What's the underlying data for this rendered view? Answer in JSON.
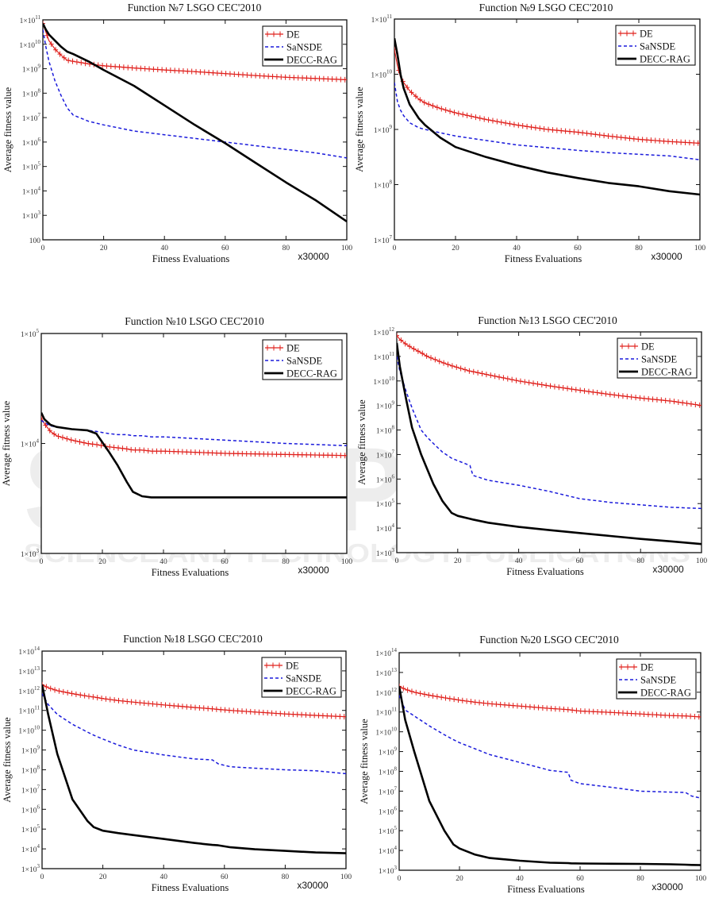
{
  "watermark": {
    "logo_main": "SCITEPRESS",
    "logo_sub": "SCIENCE AND TECHNOLOGY PUBLICATIONS"
  },
  "colors": {
    "DE": "#e0201c",
    "SaNSDE": "#1a1adb",
    "DECC-RAG": "#000000"
  },
  "chart_data": [
    {
      "type": "line",
      "title": "Function №7 LSGO CEC'2010",
      "xlabel": "Fitness Evaluations",
      "x_multiplier": "x30000",
      "ylabel": "Average fitness value",
      "yscale": "log",
      "xlim": [
        0,
        100
      ],
      "ylim_log10": [
        2,
        11
      ],
      "x_ticks": [
        "0",
        "20",
        "40",
        "60",
        "80",
        "100"
      ],
      "y_ticks": [
        {
          "exp": 11,
          "label": "1×10",
          "sup": "11"
        },
        {
          "exp": 10,
          "label": "1×10",
          "sup": "10"
        },
        {
          "exp": 9,
          "label": "1×10",
          "sup": "9"
        },
        {
          "exp": 8,
          "label": "1×10",
          "sup": "8"
        },
        {
          "exp": 7,
          "label": "1×10",
          "sup": "7"
        },
        {
          "exp": 6,
          "label": "1×10",
          "sup": "6"
        },
        {
          "exp": 5,
          "label": "1×10",
          "sup": "5"
        },
        {
          "exp": 4,
          "label": "1×10",
          "sup": "4"
        },
        {
          "exp": 3,
          "label": "1×10",
          "sup": "3"
        },
        {
          "exp": 2,
          "label": "100",
          "sup": ""
        }
      ],
      "legend": [
        "DE",
        "SaNSDE",
        "DECC-RAG"
      ],
      "legend_position": "top-right",
      "x": [
        0,
        1,
        2,
        4,
        6,
        8,
        10,
        15,
        20,
        30,
        40,
        50,
        60,
        70,
        80,
        90,
        100
      ],
      "series": [
        {
          "name": "DE",
          "log10_values": [
            10.85,
            10.5,
            10.15,
            9.8,
            9.55,
            9.35,
            9.3,
            9.2,
            9.12,
            9.03,
            8.95,
            8.88,
            8.8,
            8.72,
            8.65,
            8.6,
            8.55
          ]
        },
        {
          "name": "SaNSDE",
          "log10_values": [
            10.6,
            9.9,
            9.3,
            8.5,
            7.9,
            7.4,
            7.1,
            6.85,
            6.7,
            6.45,
            6.3,
            6.15,
            6.0,
            5.85,
            5.7,
            5.55,
            5.35
          ]
        },
        {
          "name": "DECC-RAG",
          "log10_values": [
            10.85,
            10.6,
            10.4,
            10.15,
            9.9,
            9.7,
            9.6,
            9.3,
            8.95,
            8.3,
            7.5,
            6.7,
            5.95,
            5.15,
            4.35,
            3.6,
            2.75
          ]
        }
      ]
    },
    {
      "type": "line",
      "title": "Function №9 LSGO CEC'2010",
      "xlabel": "Fitness Evaluations",
      "x_multiplier": "x30000",
      "ylabel": "Average fitness value",
      "yscale": "log",
      "xlim": [
        0,
        100
      ],
      "ylim_log10": [
        7,
        11
      ],
      "x_ticks": [
        "0",
        "20",
        "40",
        "60",
        "80",
        "100"
      ],
      "y_ticks": [
        {
          "exp": 11,
          "label": "1×10",
          "sup": "11"
        },
        {
          "exp": 10,
          "label": "1×10",
          "sup": "10"
        },
        {
          "exp": 9,
          "label": "1×10",
          "sup": "9"
        },
        {
          "exp": 8,
          "label": "1×10",
          "sup": "8"
        },
        {
          "exp": 7,
          "label": "1×10",
          "sup": "7"
        }
      ],
      "legend": [
        "DE",
        "SaNSDE",
        "DECC-RAG"
      ],
      "legend_position": "top-right",
      "x": [
        0,
        1,
        2,
        3,
        5,
        8,
        10,
        15,
        20,
        30,
        40,
        50,
        60,
        70,
        80,
        90,
        100
      ],
      "series": [
        {
          "name": "DE",
          "log10_values": [
            10.45,
            10.15,
            9.95,
            9.85,
            9.7,
            9.55,
            9.48,
            9.38,
            9.3,
            9.18,
            9.08,
            9.0,
            8.95,
            8.88,
            8.82,
            8.78,
            8.75
          ]
        },
        {
          "name": "SaNSDE",
          "log10_values": [
            9.85,
            9.5,
            9.35,
            9.25,
            9.12,
            9.03,
            9.0,
            8.94,
            8.88,
            8.8,
            8.72,
            8.67,
            8.62,
            8.58,
            8.55,
            8.52,
            8.45
          ]
        },
        {
          "name": "DECC-RAG",
          "log10_values": [
            10.65,
            10.35,
            10.0,
            9.75,
            9.45,
            9.2,
            9.08,
            8.85,
            8.68,
            8.5,
            8.35,
            8.22,
            8.12,
            8.03,
            7.97,
            7.88,
            7.82
          ]
        }
      ]
    },
    {
      "type": "line",
      "title": "Function №10 LSGO CEC'2010",
      "xlabel": "Fitness Evaluations",
      "x_multiplier": "x30000",
      "ylabel": "Average fitness value",
      "yscale": "log",
      "xlim": [
        0,
        100
      ],
      "ylim_log10": [
        3,
        5
      ],
      "x_ticks": [
        "0",
        "20",
        "40",
        "60",
        "80",
        "100"
      ],
      "y_ticks": [
        {
          "exp": 5,
          "label": "1×10",
          "sup": "5"
        },
        {
          "exp": 4,
          "label": "1×10",
          "sup": "4"
        },
        {
          "exp": 3,
          "label": "1×10",
          "sup": "3"
        }
      ],
      "legend": [
        "DE",
        "SaNSDE",
        "DECC-RAG"
      ],
      "legend_position": "top-right",
      "x": [
        0,
        1,
        3,
        5,
        10,
        15,
        18,
        20,
        22,
        25,
        28,
        30,
        33,
        36,
        40,
        60,
        80,
        100
      ],
      "series": [
        {
          "name": "DE",
          "log10_values": [
            4.23,
            4.18,
            4.11,
            4.07,
            4.03,
            4.0,
            3.99,
            3.98,
            3.97,
            3.96,
            3.95,
            3.94,
            3.94,
            3.93,
            3.93,
            3.91,
            3.9,
            3.89
          ]
        },
        {
          "name": "SaNSDE",
          "log10_values": [
            4.21,
            4.19,
            4.16,
            4.15,
            4.13,
            4.12,
            4.11,
            4.1,
            4.09,
            4.08,
            4.08,
            4.07,
            4.07,
            4.06,
            4.06,
            4.03,
            4.0,
            3.98
          ]
        },
        {
          "name": "DECC-RAG",
          "log10_values": [
            4.28,
            4.22,
            4.17,
            4.15,
            4.13,
            4.12,
            4.09,
            4.01,
            3.93,
            3.8,
            3.65,
            3.56,
            3.52,
            3.51,
            3.51,
            3.51,
            3.51,
            3.51
          ]
        }
      ]
    },
    {
      "type": "line",
      "title": "Function №13 LSGO CEC'2010",
      "xlabel": "Fitness Evaluations",
      "x_multiplier": "x30000",
      "ylabel": "Average fitness value",
      "yscale": "log",
      "xlim": [
        0,
        100
      ],
      "ylim_log10": [
        3,
        12
      ],
      "x_ticks": [
        "0",
        "20",
        "40",
        "60",
        "80",
        "100"
      ],
      "y_ticks": [
        {
          "exp": 12,
          "label": "1×10",
          "sup": "12"
        },
        {
          "exp": 11,
          "label": "1×10",
          "sup": "11"
        },
        {
          "exp": 10,
          "label": "1×10",
          "sup": "10"
        },
        {
          "exp": 9,
          "label": "1×10",
          "sup": "9"
        },
        {
          "exp": 8,
          "label": "1×10",
          "sup": "8"
        },
        {
          "exp": 7,
          "label": "1×10",
          "sup": "7"
        },
        {
          "exp": 6,
          "label": "1×10",
          "sup": "6"
        },
        {
          "exp": 5,
          "label": "1×10",
          "sup": "5"
        },
        {
          "exp": 4,
          "label": "1×10",
          "sup": "4"
        },
        {
          "exp": 3,
          "label": "1×10",
          "sup": "3"
        }
      ],
      "legend": [
        "DE",
        "SaNSDE",
        "DECC-RAG"
      ],
      "legend_position": "top-right",
      "x": [
        0,
        1,
        3,
        5,
        8,
        10,
        12,
        15,
        18,
        20,
        24,
        25,
        30,
        40,
        50,
        60,
        70,
        80,
        90,
        100
      ],
      "series": [
        {
          "name": "DE",
          "log10_values": [
            11.85,
            11.7,
            11.5,
            11.35,
            11.15,
            11.0,
            10.9,
            10.75,
            10.62,
            10.55,
            10.4,
            10.38,
            10.25,
            10.0,
            9.8,
            9.62,
            9.45,
            9.3,
            9.18,
            9.0
          ]
        },
        {
          "name": "SaNSDE",
          "log10_values": [
            11.0,
            10.4,
            9.6,
            8.9,
            8.0,
            7.7,
            7.45,
            7.1,
            6.85,
            6.75,
            6.55,
            6.15,
            5.95,
            5.75,
            5.5,
            5.2,
            5.05,
            4.95,
            4.85,
            4.8
          ]
        },
        {
          "name": "DECC-RAG",
          "log10_values": [
            11.55,
            10.6,
            9.3,
            8.1,
            7.0,
            6.4,
            5.8,
            5.1,
            4.62,
            4.5,
            4.38,
            4.35,
            4.22,
            4.05,
            3.92,
            3.8,
            3.68,
            3.56,
            3.46,
            3.35
          ]
        }
      ]
    },
    {
      "type": "line",
      "title": "Function №18 LSGO CEC'2010",
      "xlabel": "Fitness Evaluations",
      "x_multiplier": "x30000",
      "ylabel": "Average fitness value",
      "yscale": "log",
      "xlim": [
        0,
        100
      ],
      "ylim_log10": [
        3,
        14
      ],
      "x_ticks": [
        "0",
        "20",
        "40",
        "60",
        "80",
        "100"
      ],
      "y_ticks": [
        {
          "exp": 14,
          "label": "1×10",
          "sup": "14"
        },
        {
          "exp": 13,
          "label": "1×10",
          "sup": "13"
        },
        {
          "exp": 12,
          "label": "1×10",
          "sup": "12"
        },
        {
          "exp": 11,
          "label": "1×10",
          "sup": "11"
        },
        {
          "exp": 10,
          "label": "1×10",
          "sup": "10"
        },
        {
          "exp": 9,
          "label": "1×10",
          "sup": "9"
        },
        {
          "exp": 8,
          "label": "1×10",
          "sup": "8"
        },
        {
          "exp": 7,
          "label": "1×10",
          "sup": "7"
        },
        {
          "exp": 6,
          "label": "1×10",
          "sup": "6"
        },
        {
          "exp": 5,
          "label": "1×10",
          "sup": "5"
        },
        {
          "exp": 4,
          "label": "1×10",
          "sup": "4"
        },
        {
          "exp": 3,
          "label": "1×10",
          "sup": "3"
        }
      ],
      "legend": [
        "DE",
        "SaNSDE",
        "DECC-RAG"
      ],
      "legend_position": "top-right",
      "x": [
        0,
        2,
        5,
        10,
        15,
        17,
        20,
        25,
        30,
        40,
        50,
        56,
        58,
        62,
        70,
        80,
        90,
        100
      ],
      "series": [
        {
          "name": "DE",
          "log10_values": [
            12.3,
            12.15,
            12.0,
            11.85,
            11.72,
            11.68,
            11.6,
            11.5,
            11.42,
            11.28,
            11.15,
            11.08,
            11.05,
            11.0,
            10.92,
            10.82,
            10.75,
            10.68
          ]
        },
        {
          "name": "SaNSDE",
          "log10_values": [
            11.85,
            11.3,
            10.8,
            10.3,
            9.9,
            9.75,
            9.55,
            9.25,
            9.0,
            8.75,
            8.55,
            8.5,
            8.3,
            8.15,
            8.08,
            8.0,
            7.95,
            7.8
          ]
        },
        {
          "name": "DECC-RAG",
          "log10_values": [
            12.3,
            10.8,
            8.8,
            6.5,
            5.4,
            5.1,
            4.92,
            4.8,
            4.7,
            4.5,
            4.3,
            4.2,
            4.18,
            4.08,
            3.98,
            3.9,
            3.82,
            3.78
          ]
        }
      ]
    },
    {
      "type": "line",
      "title": "Function №20 LSGO CEC'2010",
      "xlabel": "Fitness Evaluations",
      "x_multiplier": "x30000",
      "ylabel": "Average fitness value",
      "yscale": "log",
      "xlim": [
        0,
        100
      ],
      "ylim_log10": [
        3,
        14
      ],
      "x_ticks": [
        "0",
        "20",
        "40",
        "60",
        "80",
        "100"
      ],
      "y_ticks": [
        {
          "exp": 14,
          "label": "1×10",
          "sup": "14"
        },
        {
          "exp": 13,
          "label": "1×10",
          "sup": "13"
        },
        {
          "exp": 12,
          "label": "1×10",
          "sup": "12"
        },
        {
          "exp": 11,
          "label": "1×10",
          "sup": "11"
        },
        {
          "exp": 10,
          "label": "1×10",
          "sup": "10"
        },
        {
          "exp": 9,
          "label": "1×10",
          "sup": "9"
        },
        {
          "exp": 8,
          "label": "1×10",
          "sup": "8"
        },
        {
          "exp": 7,
          "label": "1×10",
          "sup": "7"
        },
        {
          "exp": 6,
          "label": "1×10",
          "sup": "6"
        },
        {
          "exp": 5,
          "label": "1×10",
          "sup": "5"
        },
        {
          "exp": 4,
          "label": "1×10",
          "sup": "4"
        },
        {
          "exp": 3,
          "label": "1×10",
          "sup": "3"
        }
      ],
      "legend": [
        "DE",
        "SaNSDE",
        "DECC-RAG"
      ],
      "legend_position": "top-right",
      "x": [
        0,
        2,
        5,
        10,
        15,
        18,
        20,
        25,
        30,
        40,
        50,
        56,
        57,
        60,
        70,
        80,
        90,
        95,
        97,
        100
      ],
      "series": [
        {
          "name": "DE",
          "log10_values": [
            12.3,
            12.15,
            12.0,
            11.85,
            11.72,
            11.65,
            11.6,
            11.5,
            11.42,
            11.3,
            11.18,
            11.12,
            11.1,
            11.05,
            10.98,
            10.9,
            10.82,
            10.8,
            10.78,
            10.75
          ]
        },
        {
          "name": "SaNSDE",
          "log10_values": [
            11.85,
            11.1,
            10.8,
            10.3,
            9.85,
            9.6,
            9.45,
            9.15,
            8.85,
            8.45,
            8.05,
            7.95,
            7.55,
            7.38,
            7.2,
            7.0,
            6.95,
            6.93,
            6.75,
            6.65
          ]
        },
        {
          "name": "DECC-RAG",
          "log10_values": [
            12.3,
            10.6,
            9.0,
            6.5,
            5.0,
            4.3,
            4.1,
            3.8,
            3.62,
            3.48,
            3.38,
            3.36,
            3.35,
            3.34,
            3.33,
            3.32,
            3.3,
            3.28,
            3.27,
            3.26
          ]
        }
      ]
    }
  ]
}
